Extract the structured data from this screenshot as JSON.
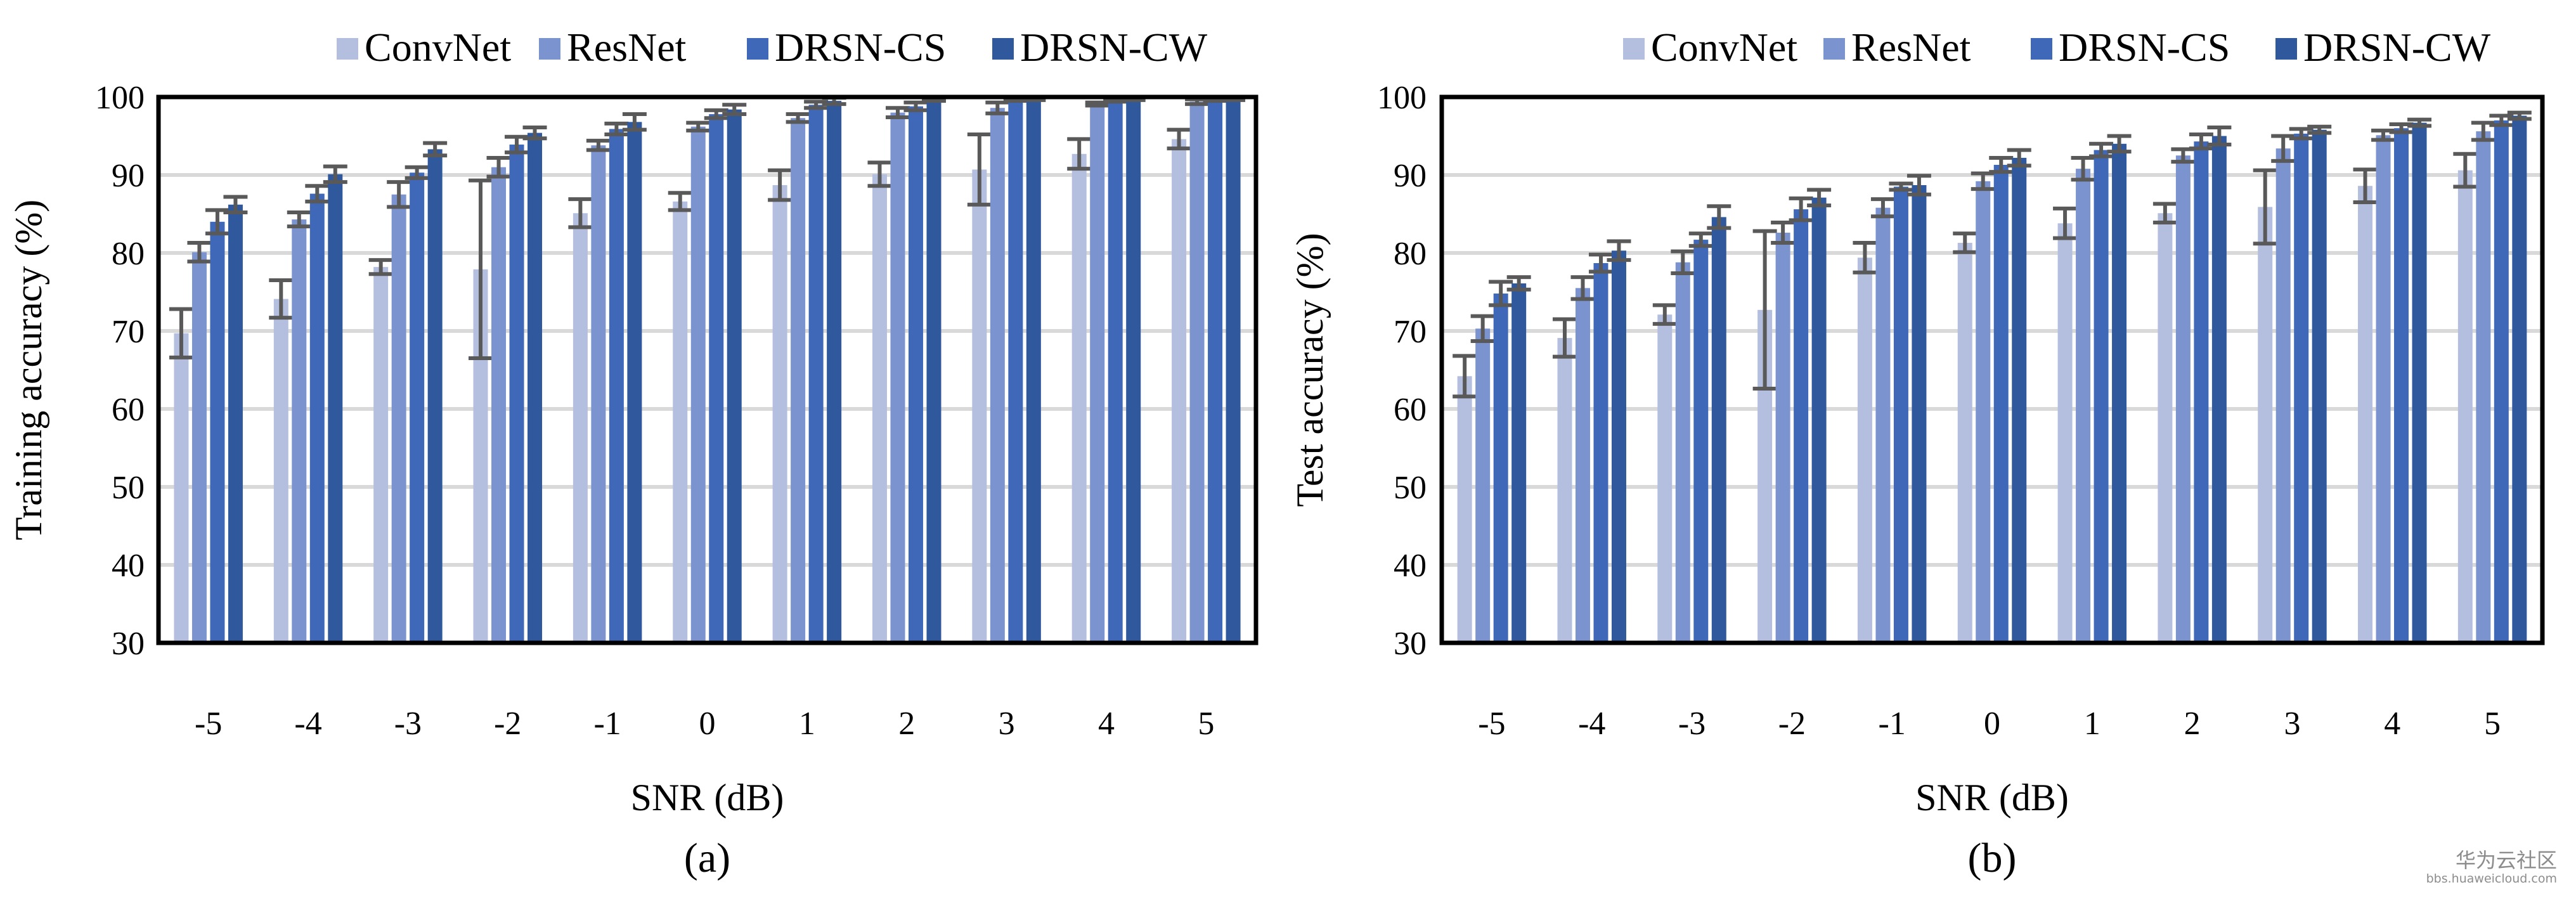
{
  "colors": {
    "ConvNet": "#b4bfe0",
    "ResNet": "#7b93cf",
    "DRSN-CS": "#3f69b8",
    "DRSN-CW": "#30589c",
    "error_bar": "#595959",
    "grid": "#d9d9d9",
    "frame": "#000000"
  },
  "chart_data": [
    {
      "type": "bar",
      "panel_label": "(a)",
      "xlabel": "SNR (dB)",
      "ylabel": "Training accuracy (%)",
      "ylim": [
        30,
        100
      ],
      "yticks": [
        30,
        40,
        50,
        60,
        70,
        80,
        90,
        100
      ],
      "grid": true,
      "legend_position": "top",
      "error_bars": true,
      "categories": [
        "-5",
        "-4",
        "-3",
        "-2",
        "-1",
        "0",
        "1",
        "2",
        "3",
        "4",
        "5"
      ],
      "series": [
        {
          "name": "ConvNet",
          "values": [
            69.7,
            74.1,
            78.2,
            77.9,
            85.1,
            86.6,
            88.7,
            90.1,
            90.7,
            92.7,
            94.6
          ],
          "errors": [
            3.1,
            2.4,
            0.9,
            11.4,
            1.8,
            1.1,
            1.9,
            1.5,
            4.5,
            1.9,
            1.2
          ]
        },
        {
          "name": "ResNet",
          "values": [
            80.1,
            84.3,
            87.5,
            91.0,
            93.8,
            96.2,
            97.3,
            98.0,
            98.6,
            99.1,
            99.4
          ],
          "errors": [
            1.2,
            0.9,
            1.6,
            1.2,
            0.6,
            0.5,
            0.5,
            0.6,
            0.7,
            0.2,
            0.3
          ]
        },
        {
          "name": "DRSN-CS",
          "values": [
            84.0,
            87.6,
            90.3,
            93.9,
            95.9,
            97.8,
            99.0,
            98.8,
            99.7,
            99.6,
            99.7
          ],
          "errors": [
            1.5,
            1.0,
            0.7,
            1.0,
            0.7,
            0.5,
            0.4,
            0.5,
            0.2,
            0.2,
            0.2
          ]
        },
        {
          "name": "DRSN-CW",
          "values": [
            86.2,
            90.1,
            93.3,
            95.4,
            96.8,
            98.4,
            99.5,
            99.7,
            99.8,
            99.8,
            99.8
          ],
          "errors": [
            1.0,
            1.0,
            0.8,
            0.7,
            1.0,
            0.6,
            0.4,
            0.2,
            0.2,
            0.2,
            0.2
          ]
        }
      ]
    },
    {
      "type": "bar",
      "panel_label": "(b)",
      "xlabel": "SNR (dB)",
      "ylabel": "Test accuracy (%)",
      "ylim": [
        30,
        100
      ],
      "yticks": [
        30,
        40,
        50,
        60,
        70,
        80,
        90,
        100
      ],
      "grid": true,
      "legend_position": "top",
      "error_bars": true,
      "categories": [
        "-5",
        "-4",
        "-3",
        "-2",
        "-1",
        "0",
        "1",
        "2",
        "3",
        "4",
        "5"
      ],
      "series": [
        {
          "name": "ConvNet",
          "values": [
            64.2,
            69.1,
            72.1,
            72.7,
            79.4,
            81.3,
            83.8,
            85.1,
            85.9,
            88.6,
            90.6
          ],
          "errors": [
            2.6,
            2.4,
            1.2,
            10.1,
            1.9,
            1.2,
            1.9,
            1.2,
            4.7,
            2.1,
            2.1
          ]
        },
        {
          "name": "ResNet",
          "values": [
            70.3,
            75.5,
            78.8,
            82.6,
            85.8,
            89.2,
            90.8,
            92.5,
            93.4,
            95.1,
            95.6
          ],
          "errors": [
            1.6,
            1.4,
            1.4,
            1.3,
            1.1,
            1.0,
            1.4,
            0.8,
            1.6,
            0.6,
            1.1
          ]
        },
        {
          "name": "DRSN-CS",
          "values": [
            74.8,
            78.7,
            81.7,
            85.6,
            88.5,
            91.3,
            93.2,
            94.3,
            95.3,
            96.0,
            97.0
          ],
          "errors": [
            1.5,
            1.1,
            0.8,
            1.4,
            0.4,
            0.9,
            0.8,
            0.9,
            0.6,
            0.5,
            0.6
          ]
        },
        {
          "name": "DRSN-CW",
          "values": [
            76.1,
            80.3,
            84.6,
            87.1,
            88.7,
            92.2,
            94.0,
            95.0,
            95.8,
            96.7,
            97.6
          ],
          "errors": [
            0.8,
            1.2,
            1.4,
            1.0,
            1.2,
            1.0,
            1.0,
            1.1,
            0.4,
            0.4,
            0.4
          ]
        }
      ]
    }
  ],
  "watermark": {
    "line1": "华为云社区",
    "line2": "bbs.huaweicloud.com"
  }
}
